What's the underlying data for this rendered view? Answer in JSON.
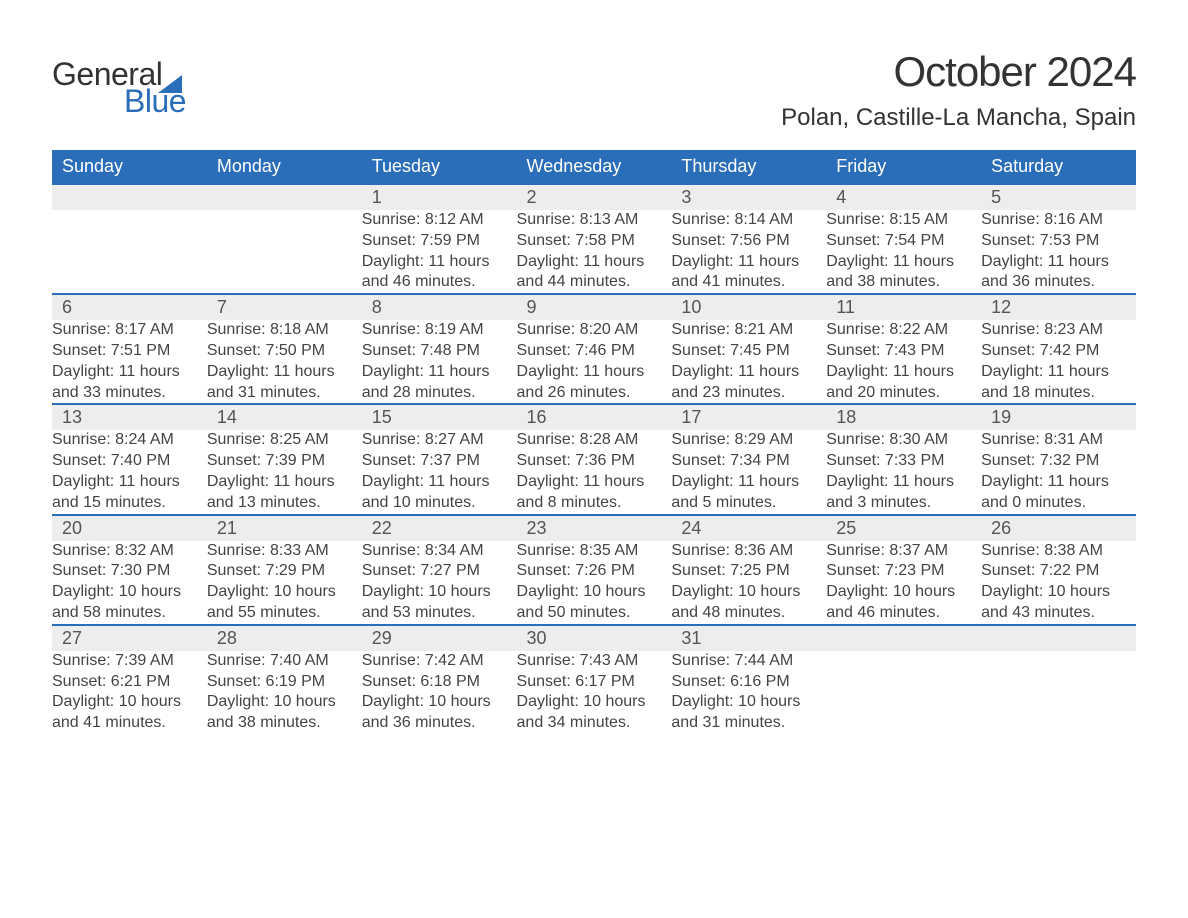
{
  "logo": {
    "text1": "General",
    "text2": "Blue",
    "color_general": "#333333",
    "color_blue": "#2a6db8"
  },
  "title": "October 2024",
  "location": "Polan, Castille-La Mancha, Spain",
  "colors": {
    "header_bg": "#2a6db8",
    "header_text": "#ffffff",
    "daynum_bg": "#ededed",
    "row_border_top": "#2a6db8",
    "body_text": "#444444",
    "page_bg": "#ffffff"
  },
  "typography": {
    "month_title_fontsize": 42,
    "location_fontsize": 24,
    "weekday_fontsize": 18,
    "daynum_fontsize": 18,
    "detail_fontsize": 16
  },
  "layout": {
    "columns": 7,
    "week_rows": 5
  },
  "weekdays": [
    "Sunday",
    "Monday",
    "Tuesday",
    "Wednesday",
    "Thursday",
    "Friday",
    "Saturday"
  ],
  "weeks": [
    [
      null,
      null,
      {
        "day": "1",
        "sunrise": "Sunrise: 8:12 AM",
        "sunset": "Sunset: 7:59 PM",
        "daylight": "Daylight: 11 hours and 46 minutes."
      },
      {
        "day": "2",
        "sunrise": "Sunrise: 8:13 AM",
        "sunset": "Sunset: 7:58 PM",
        "daylight": "Daylight: 11 hours and 44 minutes."
      },
      {
        "day": "3",
        "sunrise": "Sunrise: 8:14 AM",
        "sunset": "Sunset: 7:56 PM",
        "daylight": "Daylight: 11 hours and 41 minutes."
      },
      {
        "day": "4",
        "sunrise": "Sunrise: 8:15 AM",
        "sunset": "Sunset: 7:54 PM",
        "daylight": "Daylight: 11 hours and 38 minutes."
      },
      {
        "day": "5",
        "sunrise": "Sunrise: 8:16 AM",
        "sunset": "Sunset: 7:53 PM",
        "daylight": "Daylight: 11 hours and 36 minutes."
      }
    ],
    [
      {
        "day": "6",
        "sunrise": "Sunrise: 8:17 AM",
        "sunset": "Sunset: 7:51 PM",
        "daylight": "Daylight: 11 hours and 33 minutes."
      },
      {
        "day": "7",
        "sunrise": "Sunrise: 8:18 AM",
        "sunset": "Sunset: 7:50 PM",
        "daylight": "Daylight: 11 hours and 31 minutes."
      },
      {
        "day": "8",
        "sunrise": "Sunrise: 8:19 AM",
        "sunset": "Sunset: 7:48 PM",
        "daylight": "Daylight: 11 hours and 28 minutes."
      },
      {
        "day": "9",
        "sunrise": "Sunrise: 8:20 AM",
        "sunset": "Sunset: 7:46 PM",
        "daylight": "Daylight: 11 hours and 26 minutes."
      },
      {
        "day": "10",
        "sunrise": "Sunrise: 8:21 AM",
        "sunset": "Sunset: 7:45 PM",
        "daylight": "Daylight: 11 hours and 23 minutes."
      },
      {
        "day": "11",
        "sunrise": "Sunrise: 8:22 AM",
        "sunset": "Sunset: 7:43 PM",
        "daylight": "Daylight: 11 hours and 20 minutes."
      },
      {
        "day": "12",
        "sunrise": "Sunrise: 8:23 AM",
        "sunset": "Sunset: 7:42 PM",
        "daylight": "Daylight: 11 hours and 18 minutes."
      }
    ],
    [
      {
        "day": "13",
        "sunrise": "Sunrise: 8:24 AM",
        "sunset": "Sunset: 7:40 PM",
        "daylight": "Daylight: 11 hours and 15 minutes."
      },
      {
        "day": "14",
        "sunrise": "Sunrise: 8:25 AM",
        "sunset": "Sunset: 7:39 PM",
        "daylight": "Daylight: 11 hours and 13 minutes."
      },
      {
        "day": "15",
        "sunrise": "Sunrise: 8:27 AM",
        "sunset": "Sunset: 7:37 PM",
        "daylight": "Daylight: 11 hours and 10 minutes."
      },
      {
        "day": "16",
        "sunrise": "Sunrise: 8:28 AM",
        "sunset": "Sunset: 7:36 PM",
        "daylight": "Daylight: 11 hours and 8 minutes."
      },
      {
        "day": "17",
        "sunrise": "Sunrise: 8:29 AM",
        "sunset": "Sunset: 7:34 PM",
        "daylight": "Daylight: 11 hours and 5 minutes."
      },
      {
        "day": "18",
        "sunrise": "Sunrise: 8:30 AM",
        "sunset": "Sunset: 7:33 PM",
        "daylight": "Daylight: 11 hours and 3 minutes."
      },
      {
        "day": "19",
        "sunrise": "Sunrise: 8:31 AM",
        "sunset": "Sunset: 7:32 PM",
        "daylight": "Daylight: 11 hours and 0 minutes."
      }
    ],
    [
      {
        "day": "20",
        "sunrise": "Sunrise: 8:32 AM",
        "sunset": "Sunset: 7:30 PM",
        "daylight": "Daylight: 10 hours and 58 minutes."
      },
      {
        "day": "21",
        "sunrise": "Sunrise: 8:33 AM",
        "sunset": "Sunset: 7:29 PM",
        "daylight": "Daylight: 10 hours and 55 minutes."
      },
      {
        "day": "22",
        "sunrise": "Sunrise: 8:34 AM",
        "sunset": "Sunset: 7:27 PM",
        "daylight": "Daylight: 10 hours and 53 minutes."
      },
      {
        "day": "23",
        "sunrise": "Sunrise: 8:35 AM",
        "sunset": "Sunset: 7:26 PM",
        "daylight": "Daylight: 10 hours and 50 minutes."
      },
      {
        "day": "24",
        "sunrise": "Sunrise: 8:36 AM",
        "sunset": "Sunset: 7:25 PM",
        "daylight": "Daylight: 10 hours and 48 minutes."
      },
      {
        "day": "25",
        "sunrise": "Sunrise: 8:37 AM",
        "sunset": "Sunset: 7:23 PM",
        "daylight": "Daylight: 10 hours and 46 minutes."
      },
      {
        "day": "26",
        "sunrise": "Sunrise: 8:38 AM",
        "sunset": "Sunset: 7:22 PM",
        "daylight": "Daylight: 10 hours and 43 minutes."
      }
    ],
    [
      {
        "day": "27",
        "sunrise": "Sunrise: 7:39 AM",
        "sunset": "Sunset: 6:21 PM",
        "daylight": "Daylight: 10 hours and 41 minutes."
      },
      {
        "day": "28",
        "sunrise": "Sunrise: 7:40 AM",
        "sunset": "Sunset: 6:19 PM",
        "daylight": "Daylight: 10 hours and 38 minutes."
      },
      {
        "day": "29",
        "sunrise": "Sunrise: 7:42 AM",
        "sunset": "Sunset: 6:18 PM",
        "daylight": "Daylight: 10 hours and 36 minutes."
      },
      {
        "day": "30",
        "sunrise": "Sunrise: 7:43 AM",
        "sunset": "Sunset: 6:17 PM",
        "daylight": "Daylight: 10 hours and 34 minutes."
      },
      {
        "day": "31",
        "sunrise": "Sunrise: 7:44 AM",
        "sunset": "Sunset: 6:16 PM",
        "daylight": "Daylight: 10 hours and 31 minutes."
      },
      null,
      null
    ]
  ]
}
